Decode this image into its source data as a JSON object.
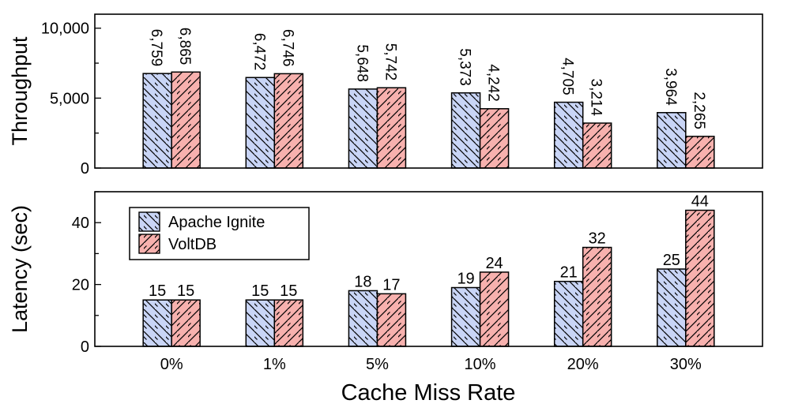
{
  "chart_data": [
    {
      "type": "bar",
      "ylabel": "Throughput",
      "categories": [
        "0%",
        "1%",
        "5%",
        "10%",
        "20%",
        "30%"
      ],
      "series": [
        {
          "name": "Apache Ignite",
          "values": [
            6759,
            6472,
            5648,
            5373,
            4705,
            3964
          ],
          "labels": [
            "6,759",
            "6,472",
            "5,648",
            "5,373",
            "4,705",
            "3,964"
          ]
        },
        {
          "name": "VoltDB",
          "values": [
            6865,
            6746,
            5742,
            4242,
            3214,
            2265
          ],
          "labels": [
            "6,865",
            "6,746",
            "5,742",
            "4,242",
            "3,214",
            "2,265"
          ]
        }
      ],
      "ylim": [
        0,
        11000
      ],
      "yticks": [
        0,
        5000,
        10000
      ],
      "ytick_labels": [
        "0",
        "5,000",
        "10,000"
      ],
      "label_orientation": "vertical"
    },
    {
      "type": "bar",
      "ylabel": "Latency (sec)",
      "xlabel": "Cache Miss Rate",
      "categories": [
        "0%",
        "1%",
        "5%",
        "10%",
        "20%",
        "30%"
      ],
      "series": [
        {
          "name": "Apache Ignite",
          "values": [
            15,
            15,
            18,
            19,
            21,
            25
          ],
          "labels": [
            "15",
            "15",
            "18",
            "19",
            "21",
            "25"
          ]
        },
        {
          "name": "VoltDB",
          "values": [
            15,
            15,
            17,
            24,
            32,
            44
          ],
          "labels": [
            "15",
            "15",
            "17",
            "24",
            "32",
            "44"
          ]
        }
      ],
      "ylim": [
        0,
        50
      ],
      "yticks": [
        0,
        20,
        40
      ],
      "ytick_labels": [
        "0",
        "20",
        "40"
      ],
      "legend": {
        "position": "top-left",
        "entries": [
          "Apache Ignite",
          "VoltDB"
        ]
      },
      "label_orientation": "horizontal"
    }
  ],
  "colors": {
    "Apache Ignite": "#c9d5f6",
    "VoltDB": "#f7b1ae",
    "edge": "#000000"
  },
  "hatch": {
    "Apache Ignite": "backslash",
    "VoltDB": "slash"
  }
}
